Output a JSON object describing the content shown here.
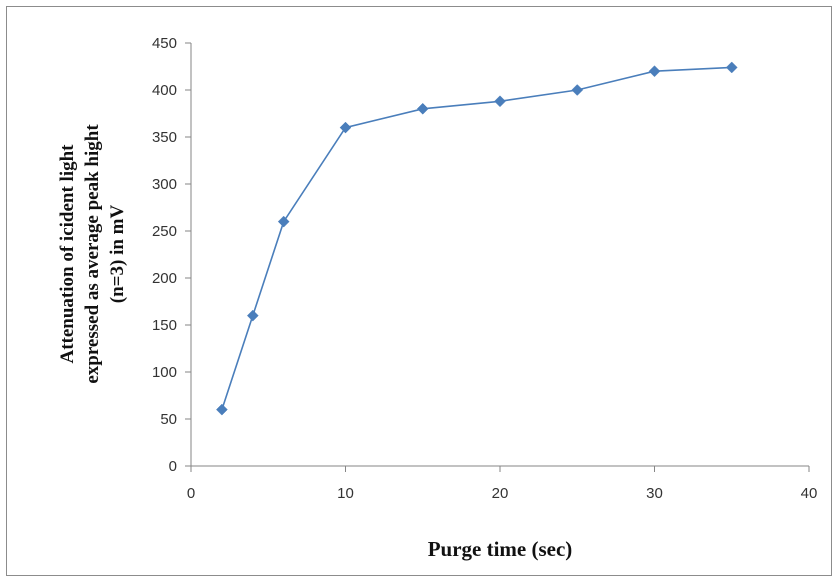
{
  "chart_data": {
    "type": "line",
    "title": "",
    "xlabel": "Purge time (sec)",
    "ylabel_lines": [
      "Attenuation of icident light",
      "expressed as average peak hight",
      "(n=3) in mV"
    ],
    "xlim": [
      0,
      40
    ],
    "ylim": [
      0,
      450
    ],
    "x_ticks": [
      "0",
      "10",
      "20",
      "30",
      "40"
    ],
    "y_ticks": [
      "0",
      "50",
      "100",
      "150",
      "200",
      "250",
      "300",
      "350",
      "400",
      "450"
    ],
    "grid": false,
    "legend": "none",
    "series": [
      {
        "color": "#4a7ebb",
        "x": [
          2,
          4,
          6,
          10,
          15,
          20,
          25,
          30,
          35
        ],
        "y": [
          60,
          160,
          260,
          360,
          380,
          388,
          400,
          420,
          424
        ]
      }
    ]
  }
}
